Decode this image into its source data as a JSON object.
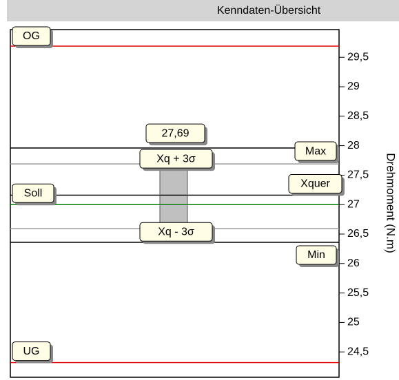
{
  "chart_data": {
    "type": "reference-lines",
    "title": "Kenndaten-Übersicht",
    "y_label": "Drehmoment (N.m)",
    "ylim": [
      24.07,
      29.97
    ],
    "yticks": [
      {
        "value": 24.5,
        "label": "24,5"
      },
      25,
      {
        "value": 25.5,
        "label": "25,5"
      },
      26,
      {
        "value": 26.5,
        "label": "26,5"
      },
      27,
      {
        "value": 27.5,
        "label": "27,5"
      },
      28,
      {
        "value": 28.5,
        "label": "28,5"
      },
      29,
      {
        "value": 29.5,
        "label": "29,5"
      }
    ],
    "lines": [
      {
        "name": "OG",
        "value": 29.69,
        "color": "#e00000"
      },
      {
        "name": "Max",
        "value": 27.96,
        "color": "#000000"
      },
      {
        "name": "Xq + 3σ",
        "value": 27.69,
        "value_label": "27,69",
        "color": "#999999"
      },
      {
        "name": "Xquer",
        "value": 27.16,
        "color": "#000000"
      },
      {
        "name": "Soll",
        "value": 27,
        "color": "#008000"
      },
      {
        "name": "Min",
        "value": 26.36,
        "color": "#000000"
      },
      {
        "name": "Xq - 3σ",
        "value": 26.59,
        "color": "#999999"
      },
      {
        "name": "UG",
        "value": 24.32,
        "color": "#e00000"
      }
    ],
    "range_color": "#c0c0c0"
  }
}
